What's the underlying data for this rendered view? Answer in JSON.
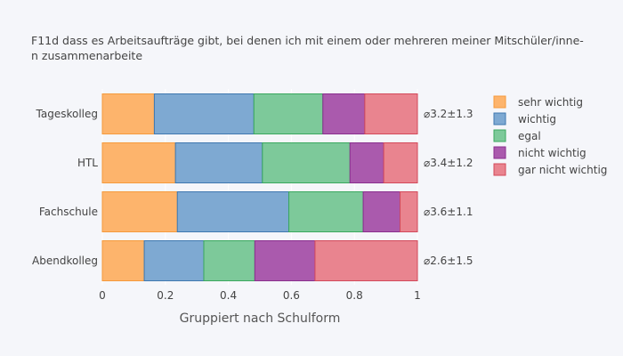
{
  "chart_data": {
    "type": "bar",
    "orientation": "horizontal",
    "stacked": true,
    "title_lines": [
      "F11d dass es Arbeitsaufträge gibt, bei denen ich mit einem oder mehreren meiner Mitschüler/inne-",
      "n zusammenarbeite"
    ],
    "xlabel": "Gruppiert nach Schulform",
    "ylabel": "",
    "xlim": [
      0,
      1
    ],
    "x_ticks": [
      0,
      0.2,
      0.4,
      0.6,
      0.8,
      1
    ],
    "x_tick_labels": [
      "0",
      "0.2",
      "0.4",
      "0.6",
      "0.8",
      "1"
    ],
    "grid": true,
    "legend_position": "right",
    "categories": [
      "Tageskolleg",
      "HTL",
      "Fachschule",
      "Abendkolleg"
    ],
    "annotations": [
      "⌀3.2±1.3",
      "⌀3.4±1.2",
      "⌀3.6±1.1",
      "⌀2.6±1.5"
    ],
    "series": [
      {
        "name": "sehr wichtig",
        "color": "#fdb46c",
        "stroke": "#f59a3c",
        "values": [
          0.165,
          0.232,
          0.238,
          0.133
        ]
      },
      {
        "name": "wichtig",
        "color": "#7ea9d2",
        "stroke": "#3f78b0",
        "values": [
          0.316,
          0.276,
          0.354,
          0.189
        ]
      },
      {
        "name": "egal",
        "color": "#7dc99a",
        "stroke": "#3aa85e",
        "values": [
          0.219,
          0.278,
          0.236,
          0.162
        ]
      },
      {
        "name": "nicht wichtig",
        "color": "#aa5aad",
        "stroke": "#8a2f8e",
        "values": [
          0.133,
          0.107,
          0.117,
          0.191
        ]
      },
      {
        "name": "gar nicht wichtig",
        "color": "#e9848f",
        "stroke": "#d3495a",
        "values": [
          0.167,
          0.107,
          0.055,
          0.325
        ]
      }
    ]
  }
}
